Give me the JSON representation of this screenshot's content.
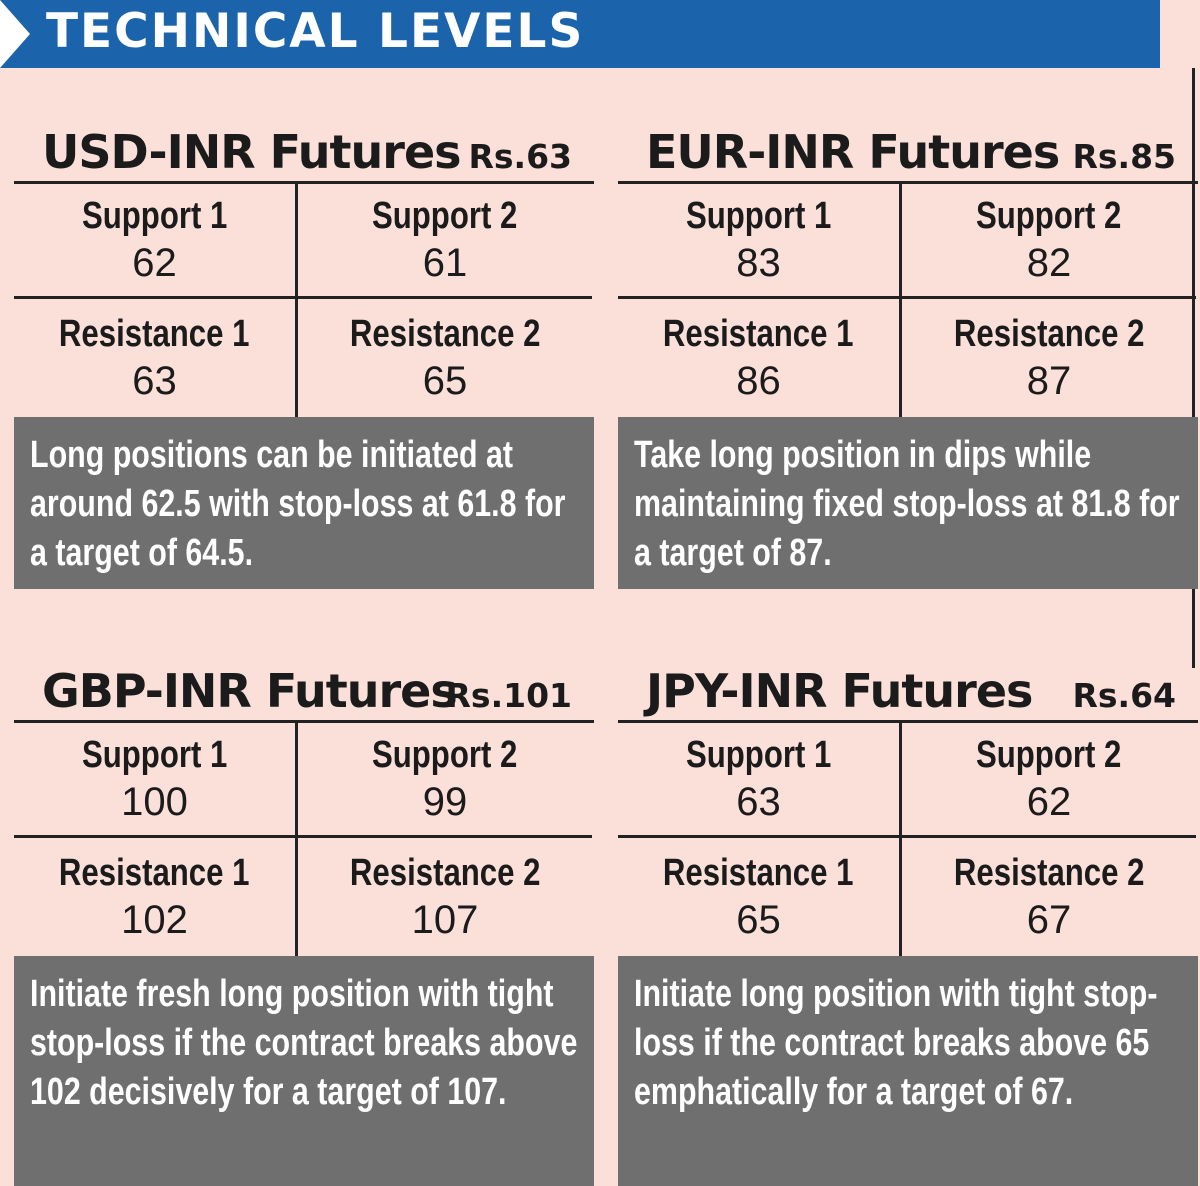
{
  "header": {
    "title": "TECHNICAL LEVELS"
  },
  "panels": [
    {
      "title": "USD-INR Futures",
      "price": "Rs.63",
      "support1_label": "Support 1",
      "support1_value": "62",
      "support2_label": "Support 2",
      "support2_value": "61",
      "resistance1_label": "Resistance 1",
      "resistance1_value": "63",
      "resistance2_label": "Resistance 2",
      "resistance2_value": "65",
      "note": "Long positions can be initiated at around 62.5 with stop-loss at 61.8 for a target of 64.5."
    },
    {
      "title": "EUR-INR Futures",
      "price": "Rs.85",
      "support1_label": "Support 1",
      "support1_value": "83",
      "support2_label": "Support 2",
      "support2_value": "82",
      "resistance1_label": "Resistance 1",
      "resistance1_value": "86",
      "resistance2_label": "Resistance 2",
      "resistance2_value": "87",
      "note": "Take long position in dips while maintaining fixed stop-loss at 81.8 for a target of 87."
    },
    {
      "title": "GBP-INR Futures",
      "price": "Rs.101",
      "support1_label": "Support 1",
      "support1_value": "100",
      "support2_label": "Support 2",
      "support2_value": "99",
      "resistance1_label": "Resistance 1",
      "resistance1_value": "102",
      "resistance2_label": "Resistance 2",
      "resistance2_value": "107",
      "note": "Initiate fresh long position with tight stop-loss if the contract breaks above 102 decisively for a target of 107."
    },
    {
      "title": "JPY-INR Futures",
      "price": "Rs.64",
      "support1_label": "Support 1",
      "support1_value": "63",
      "support2_label": "Support 2",
      "support2_value": "62",
      "resistance1_label": "Resistance 1",
      "resistance1_value": "65",
      "resistance2_label": "Resistance 2",
      "resistance2_value": "67",
      "note": "Initiate long position with tight stop-loss if the contract breaks above 65 emphatically for a target of 67."
    }
  ]
}
